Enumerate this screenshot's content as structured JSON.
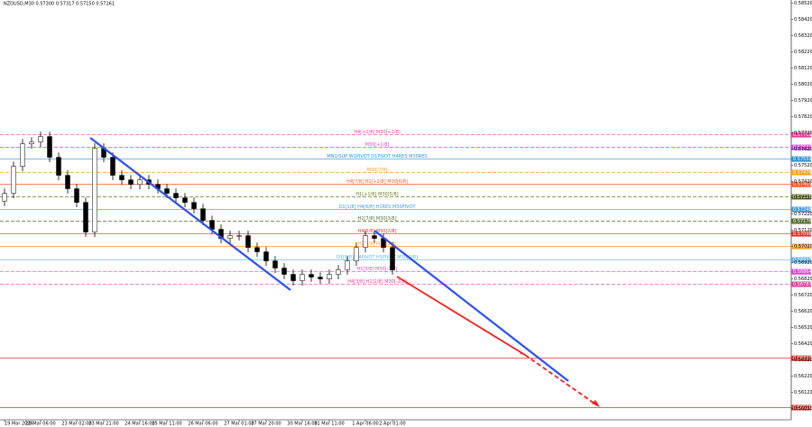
{
  "chart_data": {
    "type": "candlestick",
    "title": "NZDUSD,M30 0.57300 0.57317 0.57150 0.57161",
    "categories": [
      "19 Mar 2026",
      null,
      null,
      null,
      "20 Mar 06:00",
      null,
      null,
      null,
      "23 Mar 02:00",
      null,
      null,
      "23 Mar 21:00",
      null,
      null,
      null,
      "24 Mar 16:00",
      null,
      null,
      "25 Mar 11:00",
      null,
      null,
      null,
      "26 Mar 06:00",
      null,
      null,
      null,
      "27 Mar 01:00",
      null,
      null,
      "27 Mar 20:00",
      null,
      null,
      null,
      "30 Mar 16:00",
      null,
      null,
      "31 Mar 11:00",
      null,
      null,
      null,
      "1 Apr 06:00",
      null,
      null,
      "2 Apr 01:00"
    ],
    "open": [
      0.573,
      0.57348,
      0.57514,
      0.57653,
      0.57664,
      0.57698,
      0.5757,
      0.57459,
      0.57376,
      0.57292,
      0.57109,
      0.57626,
      0.5757,
      0.57459,
      0.57431,
      0.57403,
      0.57431,
      0.57403,
      0.57376,
      0.57348,
      0.5732,
      0.57292,
      0.57253,
      0.57181,
      0.57126,
      0.5707,
      0.57087,
      0.57087,
      0.57014,
      0.56987,
      0.56931,
      0.56887,
      0.56848,
      0.56809,
      0.56848,
      0.56831,
      0.5682,
      0.56848,
      0.56876,
      0.56931,
      0.57014,
      0.57087,
      0.5707,
      0.57014
    ],
    "high": [
      0.57378,
      0.57544,
      0.57683,
      0.57694,
      0.57728,
      0.57728,
      0.576,
      0.57489,
      0.57406,
      0.57322,
      0.57656,
      0.57656,
      0.576,
      0.57489,
      0.57461,
      0.57461,
      0.57461,
      0.57433,
      0.57406,
      0.57378,
      0.5735,
      0.57322,
      0.57283,
      0.57211,
      0.57156,
      0.57117,
      0.57117,
      0.57117,
      0.57044,
      0.57017,
      0.56961,
      0.56917,
      0.56878,
      0.56878,
      0.56878,
      0.56861,
      0.56878,
      0.56906,
      0.56961,
      0.57044,
      0.57117,
      0.57117,
      0.571,
      0.57044
    ],
    "low": [
      0.5727,
      0.57318,
      0.57484,
      0.57623,
      0.57634,
      0.5754,
      0.57429,
      0.57346,
      0.57262,
      0.57079,
      0.57079,
      0.5754,
      0.57429,
      0.57401,
      0.57373,
      0.57373,
      0.57373,
      0.57346,
      0.57318,
      0.5729,
      0.57262,
      0.57223,
      0.57151,
      0.57096,
      0.5704,
      0.5704,
      0.57057,
      0.56984,
      0.56957,
      0.56901,
      0.56857,
      0.56818,
      0.56779,
      0.56779,
      0.56801,
      0.5679,
      0.5679,
      0.56818,
      0.56846,
      0.56901,
      0.56984,
      0.5704,
      0.56984,
      0.56846
    ],
    "close": [
      0.57348,
      0.57514,
      0.57653,
      0.57664,
      0.57698,
      0.5757,
      0.57459,
      0.57376,
      0.57292,
      0.57109,
      0.57626,
      0.5757,
      0.57459,
      0.57431,
      0.57403,
      0.57431,
      0.57403,
      0.57376,
      0.57348,
      0.5732,
      0.57292,
      0.57253,
      0.57181,
      0.57126,
      0.5707,
      0.57087,
      0.57087,
      0.57014,
      0.56987,
      0.56931,
      0.56887,
      0.56848,
      0.56809,
      0.56848,
      0.56831,
      0.5682,
      0.56848,
      0.56876,
      0.56931,
      0.57014,
      0.57087,
      0.5707,
      0.57014,
      0.56876
    ],
    "up_color": "#ffffff",
    "down_color": "#000000",
    "ylim": [
      0.55955,
      0.5854
    ],
    "yticks": [
      {
        "value": 0.5852,
        "label": "0.58520"
      },
      {
        "value": 0.5842,
        "label": "0.58420"
      },
      {
        "value": 0.5832,
        "label": "0.58320"
      },
      {
        "value": 0.5822,
        "label": "0.58220"
      },
      {
        "value": 0.5812,
        "label": "0.58120"
      },
      {
        "value": 0.5802,
        "label": "0.58020"
      },
      {
        "value": 0.5792,
        "label": "0.57920"
      },
      {
        "value": 0.5782,
        "label": "0.57820"
      },
      {
        "value": 0.5772,
        "label": "0.57720"
      },
      {
        "value": 0.5762,
        "label": "0.57620"
      },
      {
        "value": 0.5752,
        "label": "0.57520"
      },
      {
        "value": 0.5742,
        "label": "0.57420"
      },
      {
        "value": 0.5732,
        "label": "0.57320"
      },
      {
        "value": 0.5722,
        "label": "0.57220"
      },
      {
        "value": 0.5712,
        "label": "0.57120"
      },
      {
        "value": 0.5702,
        "label": "0.57020"
      },
      {
        "value": 0.5692,
        "label": "0.56920"
      },
      {
        "value": 0.5682,
        "label": "0.56820"
      },
      {
        "value": 0.5672,
        "label": "0.56720"
      },
      {
        "value": 0.5662,
        "label": "0.56620"
      },
      {
        "value": 0.5652,
        "label": "0.56520"
      },
      {
        "value": 0.5642,
        "label": "0.56420"
      },
      {
        "value": 0.5632,
        "label": "0.56320"
      },
      {
        "value": 0.5622,
        "label": "0.56220"
      },
      {
        "value": 0.5612,
        "label": "0.56120"
      },
      {
        "value": 0.5602,
        "label": "0.56020"
      }
    ],
    "levels": [
      {
        "label": "H4[+1/8] M30[+2/8]",
        "value": 0.57709,
        "value_label": "0.57709",
        "color": "#e0409a",
        "dash": true
      },
      {
        "label": "M30[+1/8]",
        "value": 0.57631,
        "value_label": "0.57631",
        "color": "#e040e0",
        "dash": true
      },
      {
        "label": "MN1/SUP W1PIVOT D1PIVOT H4RES M30RES",
        "value": 0.57559,
        "value_label": "0.57559",
        "color": "#2a8fd6",
        "dash": false
      },
      {
        "label": "M30[7/8]",
        "value": 0.57476,
        "value_label": "0.57476",
        "color": "#f0a020",
        "dash": true
      },
      {
        "label": "H4[7/8] H1[+2/8] M30[6/8]",
        "value": 0.57403,
        "value_label": "0.57403",
        "color": "#f05a20",
        "dash": false
      },
      {
        "label": "H1[+1/8] M30[5/8]",
        "value": 0.57326,
        "value_label": "0.57326",
        "color": "#6b7a2a",
        "dash": true
      },
      {
        "label": "D1[1/8] H4[6/8] H1RES M30PIVOT",
        "value": 0.57248,
        "value_label": "0.57248",
        "color": "#3a9ad9",
        "dash": false
      },
      {
        "label": "H1[7/8] M30[3/8]",
        "value": 0.57176,
        "value_label": "0.57176",
        "color": "#556b2f",
        "dash": true
      },
      {
        "label": "H4[5/8] M30[2/8]",
        "value": 0.57098,
        "value_label": "0.57098",
        "color": "#e03030",
        "dash": false
      },
      {
        "label": "H1[5/8] M30[1/8]",
        "value": 0.5702,
        "value_label": "0.57020",
        "color": "#f5a030",
        "dash": false
      },
      {
        "label": "D1[0/8] H4PIVOT H1PIVOT M30[0/8]",
        "value": 0.56937,
        "value_label": "0.56937",
        "color": "#5ab0e8",
        "dash": false
      },
      {
        "label": "H1[3/8] M30[-1/8]",
        "value": 0.56864,
        "value_label": "0.56864",
        "color": "#e040e0",
        "dash": true
      },
      {
        "label": "H4[3/8] H1[2/8] M30[-2/8]",
        "value": 0.56787,
        "value_label": "0.56787",
        "color": "#e0409a",
        "dash": true
      },
      {
        "value": 0.56331,
        "value_label": "0.56331",
        "color": "#e03030",
        "dash": false
      },
      {
        "value": 0.56026,
        "value_label": "0.56026",
        "color": "#e03030",
        "dash": false
      }
    ]
  }
}
